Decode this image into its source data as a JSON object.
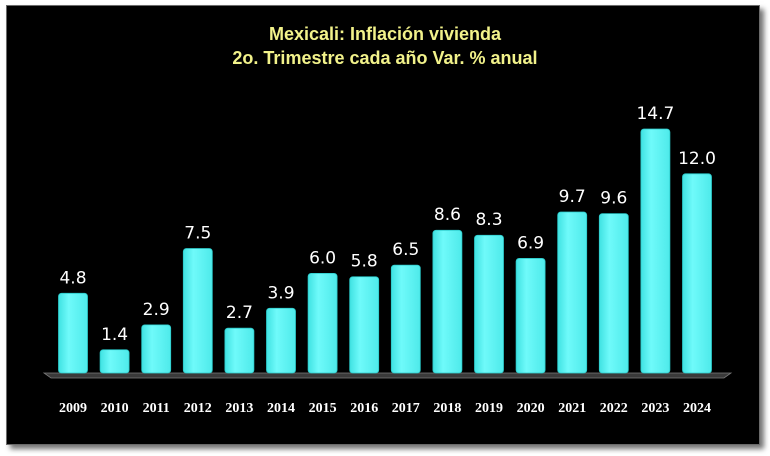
{
  "chart_data": {
    "type": "bar",
    "title": "Mexicali: Inflación vivienda",
    "subtitle": "2o. Trimestre cada año Var. % anual",
    "categories": [
      "2009",
      "2010",
      "2011",
      "2012",
      "2013",
      "2014",
      "2015",
      "2016",
      "2017",
      "2018",
      "2019",
      "2020",
      "2021",
      "2022",
      "2023",
      "2024"
    ],
    "values": [
      4.8,
      1.4,
      2.9,
      7.5,
      2.7,
      3.9,
      6.0,
      5.8,
      6.5,
      8.6,
      8.3,
      6.9,
      9.7,
      9.6,
      14.7,
      12.0
    ],
    "value_labels": [
      "4.8",
      "1.4",
      "2.9",
      "7.5",
      "2.7",
      "3.9",
      "6.0",
      "5.8",
      "6.5",
      "8.6",
      "8.3",
      "6.9",
      "9.7",
      "9.6",
      "14.7",
      "12.0"
    ],
    "xlabel": "",
    "ylabel": "",
    "ylim": [
      0,
      15
    ],
    "grid": false,
    "legend": "none",
    "colors": {
      "bar": "#5ff7f7",
      "bar_edge": "#2bc9c9",
      "background": "#000000",
      "title": "#f2f28a",
      "text": "#ffffff"
    }
  }
}
